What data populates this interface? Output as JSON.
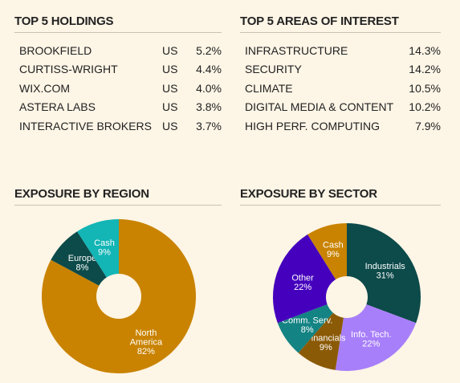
{
  "holdings": {
    "title": "TOP 5 HOLDINGS",
    "rows": [
      {
        "name": "BROOKFIELD",
        "country": "US",
        "pct": "5.2%"
      },
      {
        "name": "CURTISS-WRIGHT",
        "country": "US",
        "pct": "4.4%"
      },
      {
        "name": "WIX.COM",
        "country": "US",
        "pct": "4.0%"
      },
      {
        "name": "ASTERA LABS",
        "country": "US",
        "pct": "3.8%"
      },
      {
        "name": "INTERACTIVE BROKERS",
        "country": "US",
        "pct": "3.7%"
      }
    ]
  },
  "areas": {
    "title": "TOP 5 AREAS OF INTEREST",
    "rows": [
      {
        "name": "INFRASTRUCTURE",
        "pct": "14.3%"
      },
      {
        "name": "SECURITY",
        "pct": "14.2%"
      },
      {
        "name": "CLIMATE",
        "pct": "10.5%"
      },
      {
        "name": "DIGITAL MEDIA & CONTENT",
        "pct": "10.2%"
      },
      {
        "name": "HIGH PERF. COMPUTING",
        "pct": "7.9%"
      }
    ]
  },
  "chart_data": [
    {
      "type": "pie",
      "title": "EXPOSURE BY REGION",
      "slices": [
        {
          "label": [
            "North",
            "America"
          ],
          "value": 82,
          "display": "82%",
          "color": "#c98300"
        },
        {
          "label": [
            "Europe"
          ],
          "value": 8,
          "display": "8%",
          "color": "#0d4a4a"
        },
        {
          "label": [
            "Cash"
          ],
          "value": 9,
          "display": "9%",
          "color": "#13b5b5"
        }
      ]
    },
    {
      "type": "pie",
      "title": "EXPOSURE BY SECTOR",
      "slices": [
        {
          "label": [
            "Industrials"
          ],
          "value": 31,
          "display": "31%",
          "color": "#0d4a4a"
        },
        {
          "label": [
            "Info. Tech."
          ],
          "value": 22,
          "display": "22%",
          "color": "#a87ffa"
        },
        {
          "label": [
            "Financials"
          ],
          "value": 9,
          "display": "9%",
          "color": "#8b5a06"
        },
        {
          "label": [
            "Comm. Serv."
          ],
          "value": 8,
          "display": "8%",
          "color": "#148383"
        },
        {
          "label": [
            "Other"
          ],
          "value": 22,
          "display": "22%",
          "color": "#4500bd"
        },
        {
          "label": [
            "Cash"
          ],
          "value": 9,
          "display": "9%",
          "color": "#c98300"
        }
      ]
    }
  ]
}
